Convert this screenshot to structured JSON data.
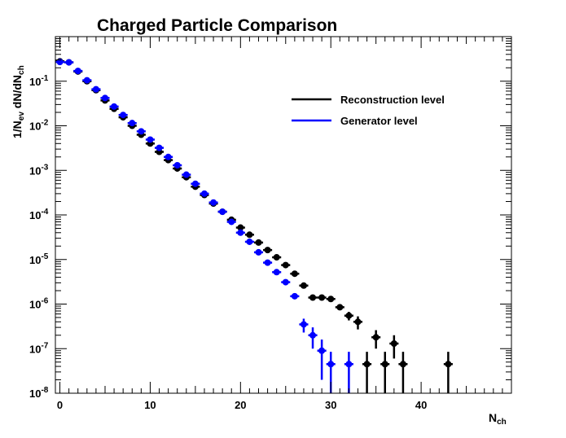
{
  "chart_data": {
    "type": "scatter",
    "title": "Charged Particle Comparison",
    "xlabel": "N_ch",
    "ylabel": "1/N_ev dN/dN_ch",
    "xlim": [
      -0.5,
      50
    ],
    "ylim_log10": [
      -8,
      0
    ],
    "yscale": "log",
    "grid": false,
    "legend_position": "top-right",
    "x_ticks": [
      0,
      10,
      20,
      30,
      40
    ],
    "y_tick_exponents": [
      -8,
      -7,
      -6,
      -5,
      -4,
      -3,
      -2,
      -1
    ],
    "y_tick_base": "10",
    "series": [
      {
        "name": "Reconstruction level",
        "color": "#000000",
        "points": [
          {
            "x": 0,
            "y": 0.28,
            "err": 0.01
          },
          {
            "x": 1,
            "y": 0.265,
            "err": 0.01
          },
          {
            "x": 2,
            "y": 0.165,
            "err": 0.005
          },
          {
            "x": 3,
            "y": 0.1,
            "err": 0.003
          },
          {
            "x": 4,
            "y": 0.063,
            "err": 0.002
          },
          {
            "x": 5,
            "y": 0.037,
            "err": 0.001
          },
          {
            "x": 6,
            "y": 0.024,
            "err": 0.0008
          },
          {
            "x": 7,
            "y": 0.0155,
            "err": 0.0005
          },
          {
            "x": 8,
            "y": 0.01,
            "err": 0.0003
          },
          {
            "x": 9,
            "y": 0.0063,
            "err": 0.0002
          },
          {
            "x": 10,
            "y": 0.004,
            "err": 0.00012
          },
          {
            "x": 11,
            "y": 0.0026,
            "err": 8e-05
          },
          {
            "x": 12,
            "y": 0.0017,
            "err": 5e-05
          },
          {
            "x": 13,
            "y": 0.0011,
            "err": 3e-05
          },
          {
            "x": 14,
            "y": 0.0007,
            "err": 2e-05
          },
          {
            "x": 15,
            "y": 0.00043,
            "err": 1e-05
          },
          {
            "x": 16,
            "y": 0.00028,
            "err": 8e-06
          },
          {
            "x": 17,
            "y": 0.00018,
            "err": 5e-06
          },
          {
            "x": 18,
            "y": 0.000118,
            "err": 3e-06
          },
          {
            "x": 19,
            "y": 7.8e-05,
            "err": 2e-06
          },
          {
            "x": 20,
            "y": 5.2e-05,
            "err": 1.5e-06
          },
          {
            "x": 21,
            "y": 3.6e-05,
            "err": 1e-06
          },
          {
            "x": 22,
            "y": 2.4e-05,
            "err": 8e-07
          },
          {
            "x": 23,
            "y": 1.63e-05,
            "err": 6e-07
          },
          {
            "x": 24,
            "y": 1.12e-05,
            "err": 4e-07
          },
          {
            "x": 25,
            "y": 7.5e-06,
            "err": 3e-07
          },
          {
            "x": 26,
            "y": 4.8e-06,
            "err": 2e-07
          },
          {
            "x": 27,
            "y": 2.6e-06,
            "err": 1.5e-07
          },
          {
            "x": 28,
            "y": 1.4e-06,
            "err": 1e-07
          },
          {
            "x": 29,
            "y": 1.4e-06,
            "err": 1e-07
          },
          {
            "x": 30,
            "y": 1.3e-06,
            "err": 1e-07
          },
          {
            "x": 31,
            "y": 8.5e-07,
            "err": 8e-08
          },
          {
            "x": 32,
            "y": 5.5e-07,
            "err": 1.2e-07
          },
          {
            "x": 33,
            "y": 4e-07,
            "err": 1.3e-07
          },
          {
            "x": 34,
            "y": 4.5e-08,
            "err": 4e-08
          },
          {
            "x": 35,
            "y": 1.8e-07,
            "err": 8e-08
          },
          {
            "x": 36,
            "y": 4.5e-08,
            "err": 4e-08
          },
          {
            "x": 37,
            "y": 1.3e-07,
            "err": 7e-08
          },
          {
            "x": 38,
            "y": 4.5e-08,
            "err": 4e-08
          },
          {
            "x": 43,
            "y": 4.5e-08,
            "err": 4e-08
          }
        ]
      },
      {
        "name": "Generator level",
        "color": "#0000ff",
        "points": [
          {
            "x": 0,
            "y": 0.27,
            "err": 0.01
          },
          {
            "x": 1,
            "y": 0.265,
            "err": 0.01
          },
          {
            "x": 2,
            "y": 0.17,
            "err": 0.005
          },
          {
            "x": 3,
            "y": 0.105,
            "err": 0.003
          },
          {
            "x": 4,
            "y": 0.066,
            "err": 0.002
          },
          {
            "x": 5,
            "y": 0.042,
            "err": 0.001
          },
          {
            "x": 6,
            "y": 0.027,
            "err": 0.0008
          },
          {
            "x": 7,
            "y": 0.0175,
            "err": 0.0005
          },
          {
            "x": 8,
            "y": 0.0115,
            "err": 0.0003
          },
          {
            "x": 9,
            "y": 0.0075,
            "err": 0.0002
          },
          {
            "x": 10,
            "y": 0.0049,
            "err": 0.00012
          },
          {
            "x": 11,
            "y": 0.0032,
            "err": 8e-05
          },
          {
            "x": 12,
            "y": 0.002,
            "err": 5e-05
          },
          {
            "x": 13,
            "y": 0.0013,
            "err": 3e-05
          },
          {
            "x": 14,
            "y": 0.0008,
            "err": 2e-05
          },
          {
            "x": 15,
            "y": 0.0005,
            "err": 1e-05
          },
          {
            "x": 16,
            "y": 0.0003,
            "err": 8e-06
          },
          {
            "x": 17,
            "y": 0.00019,
            "err": 5e-06
          },
          {
            "x": 18,
            "y": 0.000118,
            "err": 3e-06
          },
          {
            "x": 19,
            "y": 7e-05,
            "err": 2e-06
          },
          {
            "x": 20,
            "y": 4e-05,
            "err": 1.2e-06
          },
          {
            "x": 21,
            "y": 2.5e-05,
            "err": 8e-07
          },
          {
            "x": 22,
            "y": 1.45e-05,
            "err": 5e-07
          },
          {
            "x": 23,
            "y": 8.5e-06,
            "err": 3e-07
          },
          {
            "x": 24,
            "y": 5.2e-06,
            "err": 2e-07
          },
          {
            "x": 25,
            "y": 3.1e-06,
            "err": 1.5e-07
          },
          {
            "x": 26,
            "y": 1.5e-06,
            "err": 1e-07
          },
          {
            "x": 27,
            "y": 3.5e-07,
            "err": 1.2e-07
          },
          {
            "x": 28,
            "y": 2e-07,
            "err": 1e-07
          },
          {
            "x": 29,
            "y": 9e-08,
            "err": 7e-08
          },
          {
            "x": 30,
            "y": 4.5e-08,
            "err": 4e-08
          },
          {
            "x": 32,
            "y": 4.5e-08,
            "err": 4e-08
          }
        ]
      }
    ]
  }
}
